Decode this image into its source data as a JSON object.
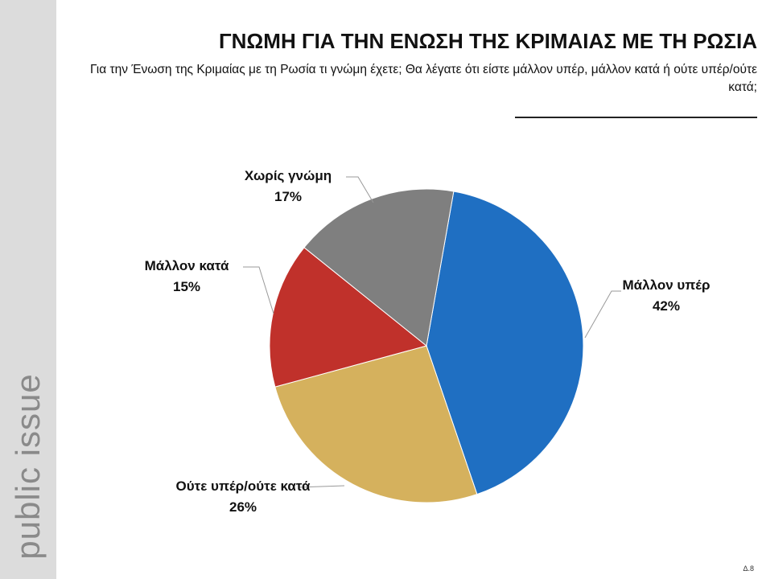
{
  "brand": "public issue",
  "page_number": "Δ.8",
  "chart_data": {
    "type": "pie",
    "title": "ΓΝΩΜΗ ΓΙΑ ΤΗΝ ΕΝΩΣΗ ΤΗΣ ΚΡΙΜΑΙΑΣ ΜΕ ΤΗ ΡΩΣΙΑ",
    "subtitle": "Για την Ένωση της Κριμαίας με τη Ρωσία τι γνώμη έχετε; Θα λέγατε ότι είστε μάλλον υπέρ, μάλλον κατά ή ούτε υπέρ/ούτε κατά;",
    "categories": [
      "Μάλλον υπέρ",
      "Ούτε υπέρ/ούτε κατά",
      "Μάλλον κατά",
      "Χωρίς γνώμη"
    ],
    "values": [
      42,
      26,
      15,
      17
    ],
    "value_labels": [
      "42%",
      "26%",
      "15%",
      "17%"
    ],
    "colors": [
      "#1f6fc2",
      "#d5b15d",
      "#c0312b",
      "#7f7f7f"
    ]
  }
}
